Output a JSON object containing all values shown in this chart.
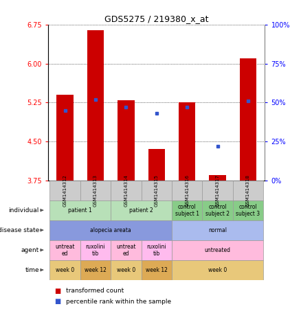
{
  "title": "GDS5275 / 219380_x_at",
  "samples": [
    "GSM1414312",
    "GSM1414313",
    "GSM1414314",
    "GSM1414315",
    "GSM1414316",
    "GSM1414317",
    "GSM1414318"
  ],
  "transformed_count": [
    5.4,
    6.65,
    5.3,
    4.35,
    5.25,
    3.85,
    6.1
  ],
  "percentile_rank": [
    45,
    52,
    47,
    43,
    47,
    22,
    51
  ],
  "ylim_left": [
    3.75,
    6.75
  ],
  "ylim_right": [
    0,
    100
  ],
  "yticks_left": [
    3.75,
    4.5,
    5.25,
    6.0,
    6.75
  ],
  "yticks_right": [
    0,
    25,
    50,
    75,
    100
  ],
  "bar_color": "#cc0000",
  "dot_color": "#3355cc",
  "bar_bottom": 3.75,
  "annotations": {
    "individual": {
      "groups": [
        {
          "cols": [
            0,
            1
          ],
          "text": "patient 1",
          "color": "#b8e0b8"
        },
        {
          "cols": [
            2,
            3
          ],
          "text": "patient 2",
          "color": "#b8e0b8"
        },
        {
          "cols": [
            4
          ],
          "text": "control\nsubject 1",
          "color": "#88cc88"
        },
        {
          "cols": [
            5
          ],
          "text": "control\nsubject 2",
          "color": "#88cc88"
        },
        {
          "cols": [
            6
          ],
          "text": "control\nsubject 3",
          "color": "#88cc88"
        }
      ]
    },
    "disease_state": {
      "groups": [
        {
          "cols": [
            0,
            1,
            2,
            3
          ],
          "text": "alopecia areata",
          "color": "#8899dd"
        },
        {
          "cols": [
            4,
            5,
            6
          ],
          "text": "normal",
          "color": "#aabbee"
        }
      ]
    },
    "agent": {
      "groups": [
        {
          "cols": [
            0
          ],
          "text": "untreat\ned",
          "color": "#ffbbdd"
        },
        {
          "cols": [
            1
          ],
          "text": "ruxolini\ntib",
          "color": "#ffbbee"
        },
        {
          "cols": [
            2
          ],
          "text": "untreat\ned",
          "color": "#ffbbdd"
        },
        {
          "cols": [
            3
          ],
          "text": "ruxolini\ntib",
          "color": "#ffbbee"
        },
        {
          "cols": [
            4,
            5,
            6
          ],
          "text": "untreated",
          "color": "#ffbbdd"
        }
      ]
    },
    "time": {
      "groups": [
        {
          "cols": [
            0
          ],
          "text": "week 0",
          "color": "#e8c87a"
        },
        {
          "cols": [
            1
          ],
          "text": "week 12",
          "color": "#ddaa55"
        },
        {
          "cols": [
            2
          ],
          "text": "week 0",
          "color": "#e8c87a"
        },
        {
          "cols": [
            3
          ],
          "text": "week 12",
          "color": "#ddaa55"
        },
        {
          "cols": [
            4,
            5,
            6
          ],
          "text": "week 0",
          "color": "#e8c87a"
        }
      ]
    }
  },
  "ann_labels": [
    "individual",
    "disease state",
    "agent",
    "time"
  ],
  "legend": [
    {
      "color": "#cc0000",
      "label": "transformed count"
    },
    {
      "color": "#3355cc",
      "label": "percentile rank within the sample"
    }
  ]
}
